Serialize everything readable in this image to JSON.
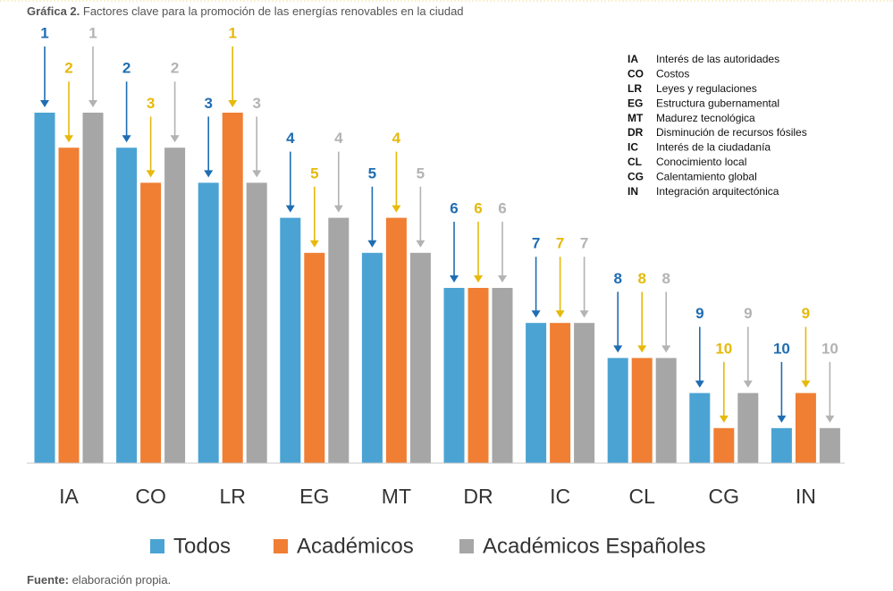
{
  "chart_data": {
    "type": "ranked-bar",
    "title_prefix": "Gráfica 2.",
    "title": "Factores clave para la promoción de las energías renovables en la ciudad",
    "categories": [
      "IA",
      "CO",
      "LR",
      "EG",
      "MT",
      "DR",
      "IC",
      "CL",
      "CG",
      "IN"
    ],
    "series": [
      {
        "name": "Todos",
        "color": "#4ba3d3",
        "arrow_color": "#1f6db3",
        "values": [
          1,
          2,
          3,
          4,
          5,
          6,
          7,
          8,
          9,
          10
        ]
      },
      {
        "name": "Académicos",
        "color": "#f07e33",
        "arrow_color": "#e6b90b",
        "values": [
          2,
          3,
          1,
          5,
          4,
          6,
          7,
          8,
          10,
          9
        ]
      },
      {
        "name": "Académicos Españoles",
        "color": "#a6a6a6",
        "arrow_color": "#b3b3b3",
        "values": [
          1,
          2,
          3,
          4,
          5,
          6,
          7,
          8,
          9,
          10
        ]
      }
    ],
    "ylim": [
      11,
      1
    ],
    "abbreviations": [
      {
        "code": "IA",
        "label": "Interés de las autoridades"
      },
      {
        "code": "CO",
        "label": "Costos"
      },
      {
        "code": "LR",
        "label": "Leyes y regulaciones"
      },
      {
        "code": "EG",
        "label": "Estructura gubernamental"
      },
      {
        "code": "MT",
        "label": "Madurez tecnológica"
      },
      {
        "code": "DR",
        "label": "Disminución de recursos fósiles"
      },
      {
        "code": "IC",
        "label": "Interés de la ciudadanía"
      },
      {
        "code": "CL",
        "label": "Conocimiento local"
      },
      {
        "code": "CG",
        "label": "Calentamiento global"
      },
      {
        "code": "IN",
        "label": "Integración arquitectónica"
      }
    ],
    "source_prefix": "Fuente:",
    "source": "elaboración propia."
  }
}
